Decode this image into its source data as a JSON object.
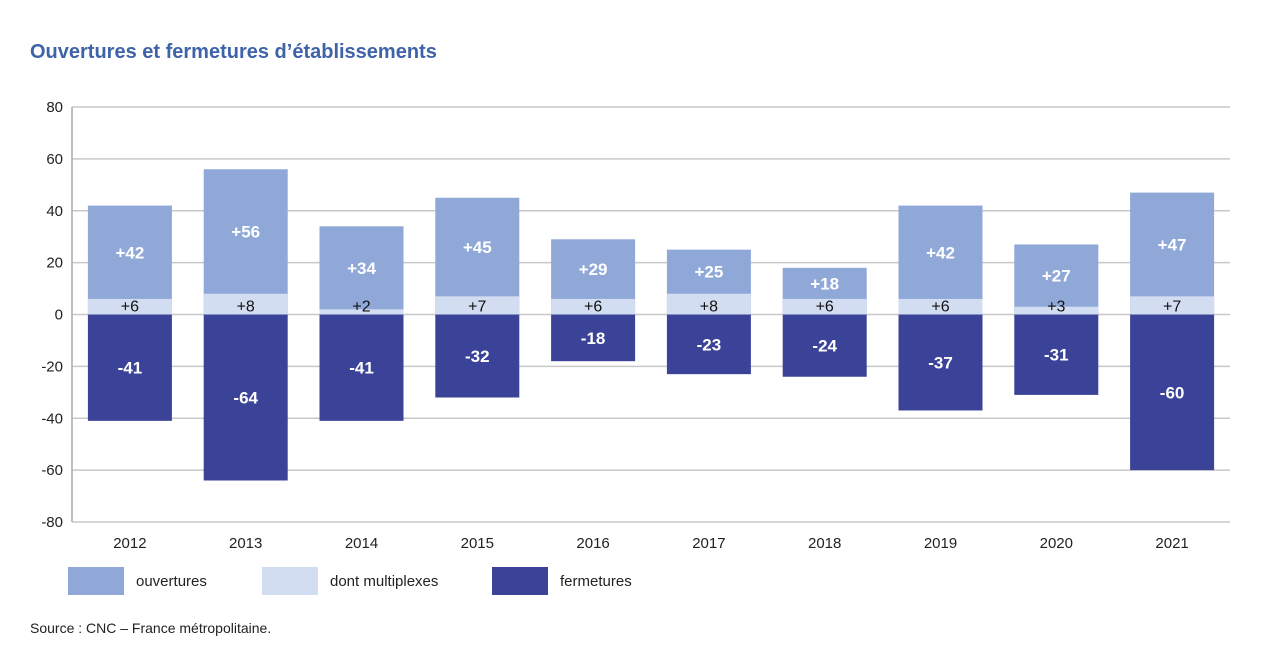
{
  "chart_data": {
    "type": "bar",
    "stacked": true,
    "title": "Ouvertures et fermetures d’établissements",
    "categories": [
      "2012",
      "2013",
      "2014",
      "2015",
      "2016",
      "2017",
      "2018",
      "2019",
      "2020",
      "2021"
    ],
    "series": [
      {
        "name": "ouvertures",
        "values": [
          42,
          56,
          34,
          45,
          29,
          25,
          18,
          42,
          27,
          47
        ],
        "labels": [
          "+42",
          "+56",
          "+34",
          "+45",
          "+29",
          "+25",
          "+18",
          "+42",
          "+27",
          "+47"
        ],
        "color": "#8fa8d8"
      },
      {
        "name": "dont multiplexes",
        "values": [
          6,
          8,
          2,
          7,
          6,
          8,
          6,
          6,
          3,
          7
        ],
        "labels": [
          "+6",
          "+8",
          "+2",
          "+7",
          "+6",
          "+8",
          "+6",
          "+6",
          "+3",
          "+7"
        ],
        "color": "#d3ddf1"
      },
      {
        "name": "fermetures",
        "values": [
          -41,
          -64,
          -41,
          -32,
          -18,
          -23,
          -24,
          -37,
          -31,
          -60
        ],
        "labels": [
          "-41",
          "-64",
          "-41",
          "-32",
          "-18",
          "-23",
          "-24",
          "-37",
          "-31",
          "-60"
        ],
        "color": "#3b4399"
      }
    ],
    "ylim": [
      -80,
      80
    ],
    "yticks": [
      "80",
      "60",
      "40",
      "20",
      "0",
      "-20",
      "-40",
      "-60",
      "-80"
    ],
    "ytick_values": [
      80,
      60,
      40,
      20,
      0,
      -20,
      -40,
      -60,
      -80
    ],
    "grid": true,
    "legend_position": "bottom-left",
    "xlabel": "",
    "ylabel": ""
  },
  "colors": {
    "title": "#3f63a9",
    "grid": "#c8c8c8",
    "axis": "#aaaaaa"
  },
  "source": "Source : CNC – France métropolitaine."
}
